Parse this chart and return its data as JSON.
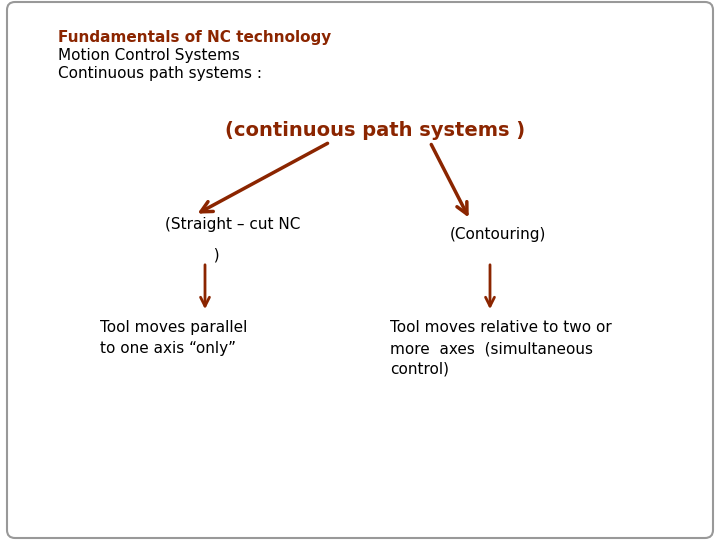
{
  "bg_color": "#ffffff",
  "border_color": "#999999",
  "arrow_color": "#8B2500",
  "text_color": "#000000",
  "header_bold_color": "#1a1a1a",
  "title_line1": "Fundamentals of NC technology",
  "title_line2": "Motion Control Systems",
  "title_line3": "Continuous path systems :",
  "root_label": "(continuous path systems )",
  "left_label_1": "(Straight – cut NC",
  "left_label_2": "          )",
  "right_label": "(Contouring)",
  "left_desc": "Tool moves parallel\nto one axis “only”",
  "right_desc": "Tool moves relative to two or\nmore  axes  (simultaneous\ncontrol)"
}
